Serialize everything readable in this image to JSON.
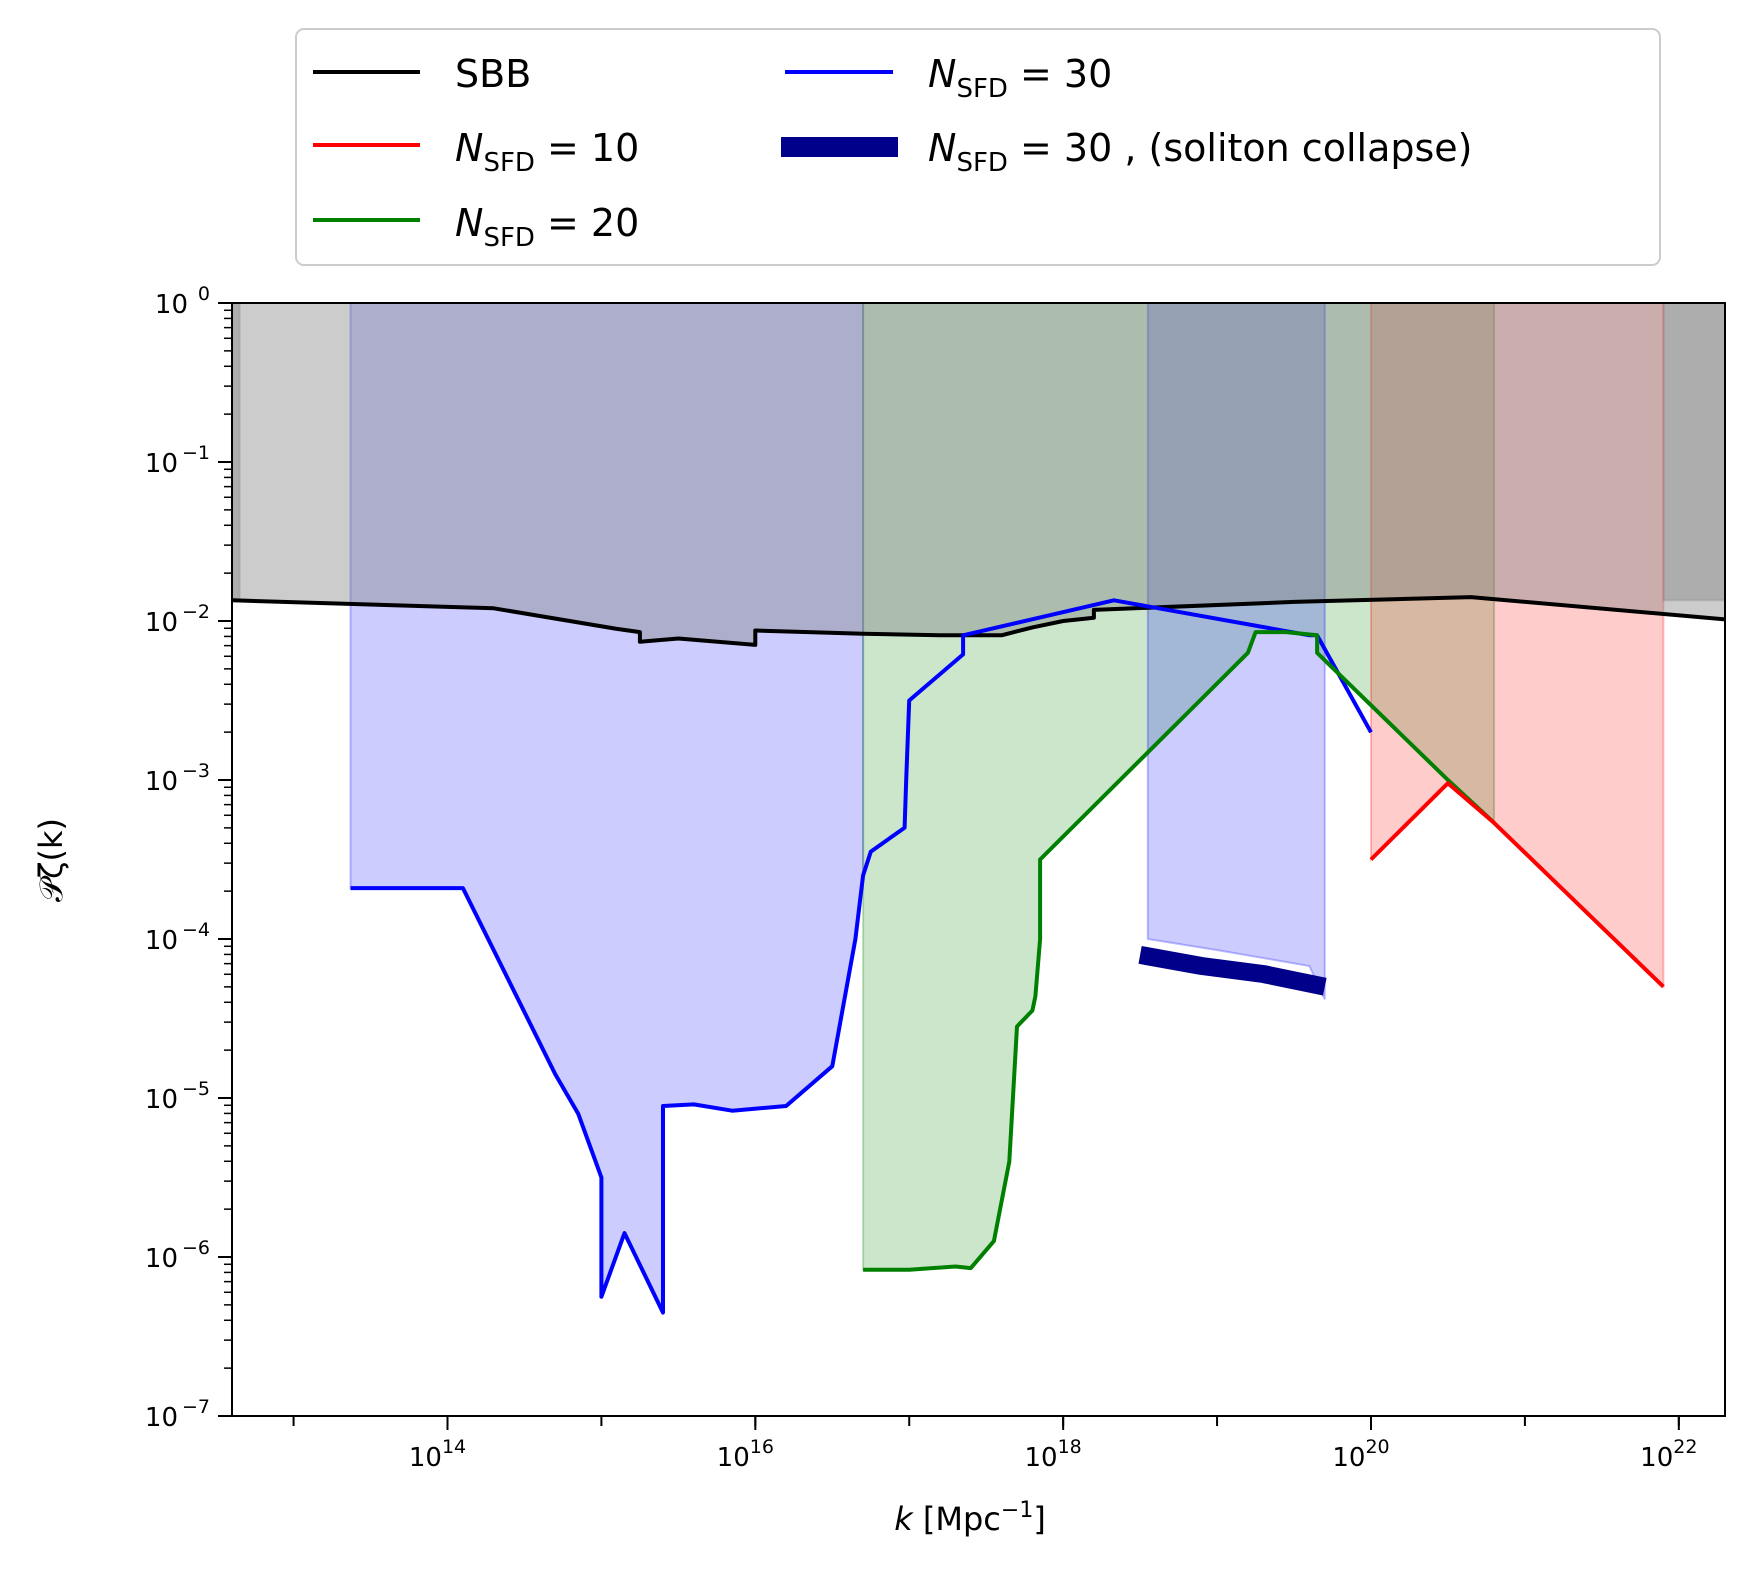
{
  "chart_data": {
    "type": "line",
    "xlabel": "k [Mpc⁻¹]",
    "ylabel": "𝒫ζ(k)",
    "xscale": "log",
    "yscale": "log",
    "xlim_exp": [
      12.6,
      22.3
    ],
    "ylim_exp": [
      -7,
      0
    ],
    "x_ticks": [
      {
        "exp": 14,
        "label": "10",
        "sup": "14"
      },
      {
        "exp": 16,
        "label": "10",
        "sup": "16"
      },
      {
        "exp": 18,
        "label": "10",
        "sup": "18"
      },
      {
        "exp": 20,
        "label": "10",
        "sup": "20"
      },
      {
        "exp": 22,
        "label": "10",
        "sup": "22"
      }
    ],
    "y_ticks": [
      {
        "exp": 0,
        "label": "10",
        "sup": "0"
      },
      {
        "exp": -1,
        "label": "10",
        "sup": "−1"
      },
      {
        "exp": -2,
        "label": "10",
        "sup": "−2"
      },
      {
        "exp": -3,
        "label": "10",
        "sup": "−3"
      },
      {
        "exp": -4,
        "label": "10",
        "sup": "−4"
      },
      {
        "exp": -5,
        "label": "10",
        "sup": "−5"
      },
      {
        "exp": -6,
        "label": "10",
        "sup": "−6"
      },
      {
        "exp": -7,
        "label": "10",
        "sup": "−7"
      }
    ],
    "legend": {
      "placement": "above plot",
      "entries": [
        {
          "key": "sbb",
          "label": "SBB",
          "color": "#000000"
        },
        {
          "key": "n10",
          "label": "N",
          "sub": "SFD",
          "suffix": " = 10",
          "color": "#ff0000"
        },
        {
          "key": "n20",
          "label": "N",
          "sub": "SFD",
          "suffix": " = 20",
          "color": "#008000"
        },
        {
          "key": "n30",
          "label": "N",
          "sub": "SFD",
          "suffix": " = 30",
          "color": "#0000ff"
        },
        {
          "key": "n30s",
          "label": "N",
          "sub": "SFD",
          "suffix": " = 30 ,  (soliton collapse)",
          "color": "#00008b"
        }
      ]
    },
    "series": [
      {
        "name": "SBB",
        "color": "#000000",
        "points_log": [
          [
            12.6,
            -1.87
          ],
          [
            14.3,
            -1.92
          ],
          [
            15.1,
            -2.05
          ],
          [
            15.25,
            -2.07
          ],
          [
            15.25,
            -2.13
          ],
          [
            15.5,
            -2.11
          ],
          [
            16.0,
            -2.15
          ],
          [
            16.0,
            -2.06
          ],
          [
            16.7,
            -2.08
          ],
          [
            17.2,
            -2.09
          ],
          [
            17.6,
            -2.09
          ],
          [
            17.8,
            -2.04
          ],
          [
            18.0,
            -2.0
          ],
          [
            18.2,
            -1.98
          ],
          [
            18.2,
            -1.93
          ],
          [
            19.5,
            -1.88
          ],
          [
            20.65,
            -1.85
          ],
          [
            22.3,
            -1.99
          ]
        ]
      },
      {
        "name": "N_SFD = 30",
        "color": "#0000ff",
        "points_log": [
          [
            13.37,
            -3.68
          ],
          [
            14.1,
            -3.68
          ],
          [
            14.7,
            -4.85
          ],
          [
            14.85,
            -5.1
          ],
          [
            15.0,
            -5.5
          ],
          [
            15.0,
            -6.25
          ],
          [
            15.15,
            -5.85
          ],
          [
            15.4,
            -6.35
          ],
          [
            15.4,
            -5.05
          ],
          [
            15.6,
            -5.04
          ],
          [
            15.85,
            -5.08
          ],
          [
            16.2,
            -5.05
          ],
          [
            16.5,
            -4.8
          ],
          [
            16.65,
            -4.0
          ],
          [
            16.7,
            -3.6
          ],
          [
            16.75,
            -3.45
          ],
          [
            16.97,
            -3.3
          ],
          [
            16.98,
            -3.0
          ],
          [
            17.0,
            -2.5
          ],
          [
            17.35,
            -2.21
          ],
          [
            17.35,
            -2.09
          ],
          [
            18.33,
            -1.87
          ],
          [
            19.6,
            -2.09
          ],
          [
            19.65,
            -2.09
          ],
          [
            20.0,
            -2.7
          ]
        ]
      },
      {
        "name": "N_SFD = 20",
        "color": "#008000",
        "points_log": [
          [
            16.7,
            -6.08
          ],
          [
            17.0,
            -6.08
          ],
          [
            17.3,
            -6.06
          ],
          [
            17.4,
            -6.07
          ],
          [
            17.55,
            -5.9
          ],
          [
            17.65,
            -5.4
          ],
          [
            17.7,
            -4.55
          ],
          [
            17.8,
            -4.45
          ],
          [
            17.82,
            -4.36
          ],
          [
            17.85,
            -4.0
          ],
          [
            17.85,
            -3.5
          ],
          [
            19.2,
            -2.2
          ],
          [
            19.25,
            -2.07
          ],
          [
            19.45,
            -2.07
          ],
          [
            19.65,
            -2.09
          ],
          [
            19.65,
            -2.2
          ],
          [
            20.5,
            -3.0
          ],
          [
            20.8,
            -3.27
          ]
        ]
      },
      {
        "name": "N_SFD = 10",
        "color": "#ff0000",
        "points_log": [
          [
            20.0,
            -3.5
          ],
          [
            20.5,
            -3.02
          ],
          [
            20.8,
            -3.27
          ],
          [
            21.9,
            -4.3
          ]
        ]
      },
      {
        "name": "N_SFD = 30, (soliton collapse)",
        "color": "#00008b",
        "thick": true,
        "points_log": [
          [
            18.5,
            -4.1
          ],
          [
            18.9,
            -4.17
          ],
          [
            19.3,
            -4.22
          ],
          [
            19.7,
            -4.3
          ]
        ]
      }
    ],
    "shaded_regions": [
      {
        "name": "sbb-band",
        "color": "#808080",
        "opacity": 0.4,
        "x_log": [
          12.6,
          12.65
        ]
      },
      {
        "name": "sbb-band-right",
        "color": "#808080",
        "opacity": 0.4,
        "x_log": [
          21.9,
          22.3
        ]
      },
      {
        "name": "n30-band",
        "color": "#0000ff",
        "opacity": 0.2,
        "x_log": [
          13.37,
          16.7
        ]
      },
      {
        "name": "n20-band",
        "color": "#008000",
        "opacity": 0.2,
        "x_log": [
          16.7,
          20.8
        ]
      },
      {
        "name": "n30s-band",
        "color": "#0000ff",
        "opacity": 0.2,
        "x_log": [
          18.55,
          19.7
        ]
      },
      {
        "name": "n10-band",
        "color": "#ff0000",
        "opacity": 0.2,
        "x_log": [
          20.0,
          21.9
        ]
      }
    ]
  }
}
